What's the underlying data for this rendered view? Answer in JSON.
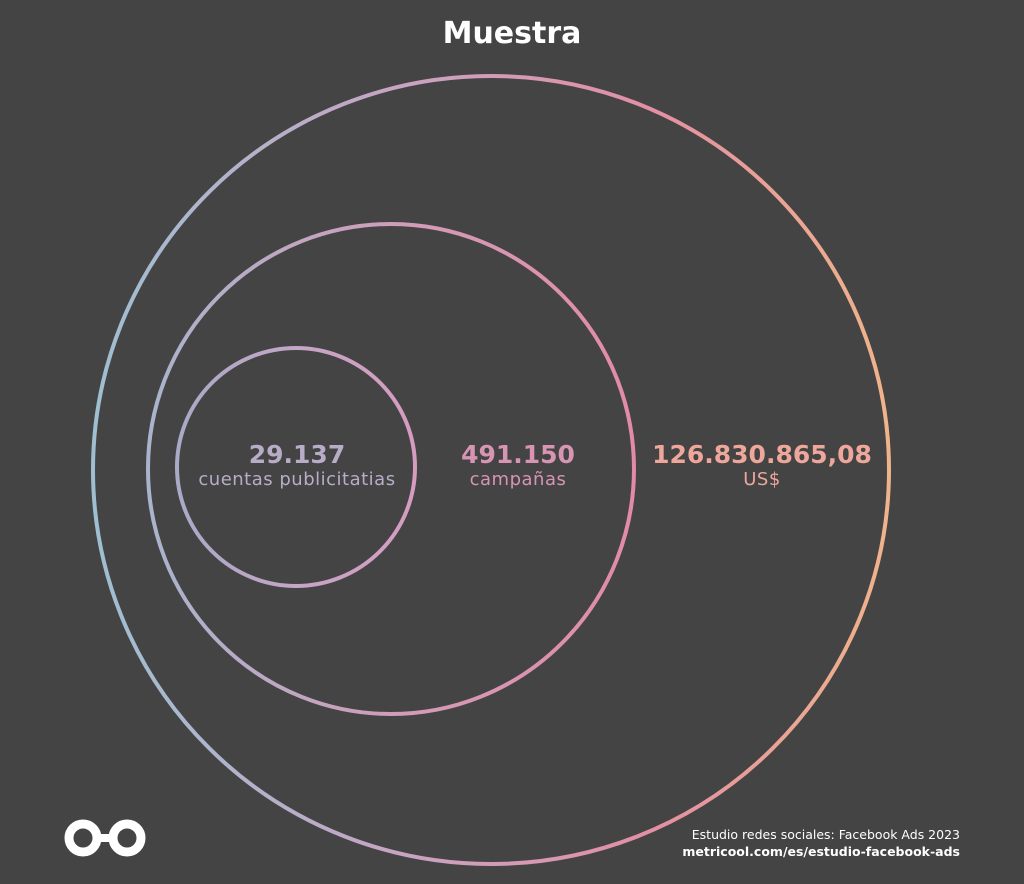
{
  "title": "Muestra",
  "circles": [
    {
      "value": "29.137",
      "label": "cuentas publicitatias",
      "color": "#b8acc8"
    },
    {
      "value": "491.150",
      "label": "campañas",
      "color": "#d794b3"
    },
    {
      "value": "126.830.865,08",
      "label": "US$",
      "color": "#eea79a"
    }
  ],
  "gradient": {
    "outer": [
      "#9fbfd1",
      "#c9a3c2",
      "#e38fa4",
      "#f0b48a"
    ],
    "middle": [
      "#a9b4cc",
      "#d39bb8",
      "#e28ba7"
    ],
    "inner": [
      "#a8aac6",
      "#c4a6c6",
      "#d69cc0"
    ]
  },
  "footer": {
    "line1": "Estudio redes sociales: Facebook Ads 2023",
    "line2": "metricool.com/es/estudio-facebook-ads"
  },
  "logo": {
    "icon": "metricool-infinity-icon",
    "color": "#ffffff"
  }
}
